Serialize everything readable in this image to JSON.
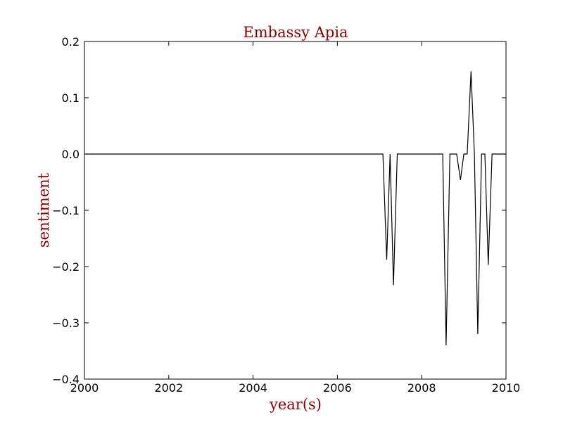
{
  "chart_data": {
    "type": "line",
    "title": "Embassy Apia",
    "xlabel": "year(s)",
    "ylabel": "sentiment",
    "xlim": [
      2000,
      2010
    ],
    "ylim": [
      -0.4,
      0.2
    ],
    "x_ticks": [
      2000,
      2002,
      2004,
      2006,
      2008,
      2010
    ],
    "x_tick_labels": [
      "2000",
      "2002",
      "2004",
      "2006",
      "2008",
      "2010"
    ],
    "y_ticks": [
      -0.4,
      -0.3,
      -0.2,
      -0.1,
      0.0,
      0.1,
      0.2
    ],
    "y_tick_labels": [
      "−0.4",
      "−0.3",
      "−0.2",
      "−0.1",
      "0.0",
      "0.1",
      "0.2"
    ],
    "grid": false,
    "line_color": "#000000",
    "text_color": "#8b0000",
    "series": [
      {
        "x": [
          2000.0,
          2007.08,
          2007.17,
          2007.25,
          2007.33,
          2007.42,
          2008.5,
          2008.58,
          2008.67,
          2008.83,
          2008.92,
          2009.0,
          2009.08,
          2009.17,
          2009.25,
          2009.33,
          2009.42,
          2009.5,
          2009.58,
          2009.67,
          2010.0
        ],
        "y": [
          0.0,
          0.0,
          -0.188,
          0.0,
          -0.233,
          0.0,
          0.0,
          -0.34,
          0.0,
          0.0,
          -0.046,
          0.0,
          0.0,
          0.147,
          0.0,
          -0.32,
          0.0,
          0.0,
          -0.197,
          0.0,
          0.0
        ]
      }
    ]
  }
}
